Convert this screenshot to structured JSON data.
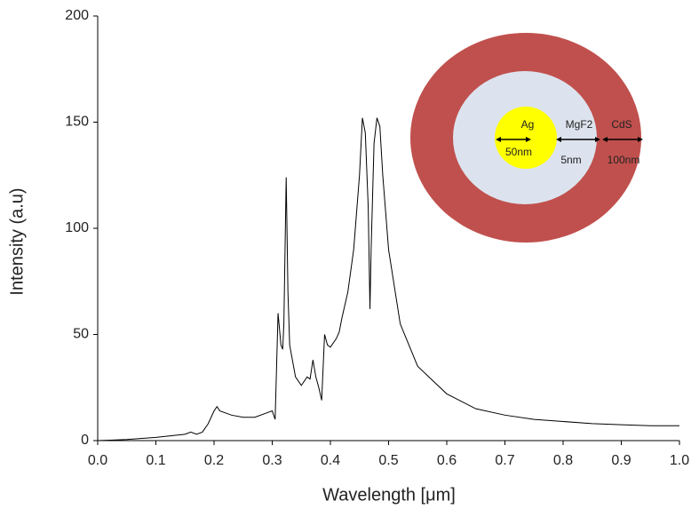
{
  "chart_data": {
    "type": "line",
    "xlabel": "Wavelength [μm]",
    "ylabel": "Intensity (a.u)",
    "x": [
      0,
      0.05,
      0.1,
      0.15,
      0.16,
      0.17,
      0.18,
      0.19,
      0.2,
      0.205,
      0.21,
      0.23,
      0.25,
      0.27,
      0.29,
      0.3,
      0.305,
      0.31,
      0.315,
      0.318,
      0.32,
      0.324,
      0.327,
      0.33,
      0.34,
      0.35,
      0.36,
      0.365,
      0.37,
      0.375,
      0.38,
      0.385,
      0.39,
      0.395,
      0.4,
      0.41,
      0.415,
      0.42,
      0.43,
      0.44,
      0.45,
      0.455,
      0.46,
      0.465,
      0.468,
      0.47,
      0.475,
      0.48,
      0.485,
      0.49,
      0.5,
      0.52,
      0.55,
      0.6,
      0.65,
      0.7,
      0.75,
      0.8,
      0.85,
      0.9,
      0.95,
      1.0
    ],
    "series": [
      {
        "color": "#000000",
        "values": [
          0,
          0.5,
          1.5,
          3,
          4,
          3,
          4,
          8,
          14,
          16,
          14,
          12,
          11,
          11,
          13,
          14,
          10,
          60,
          45,
          43,
          55,
          124,
          70,
          45,
          30,
          26,
          30,
          29,
          38,
          30,
          25,
          19,
          50,
          45,
          44,
          48,
          51,
          58,
          70,
          90,
          125,
          152,
          145,
          110,
          62,
          90,
          140,
          152,
          148,
          125,
          90,
          55,
          35,
          22,
          15,
          12,
          10,
          9,
          8,
          7.5,
          7,
          7
        ]
      }
    ],
    "xlim": [
      0,
      1
    ],
    "ylim": [
      0,
      200
    ],
    "xticks": [
      {
        "value": 0,
        "label": "0.0"
      },
      0.1,
      0.2,
      0.3,
      0.4,
      0.5,
      0.6,
      0.7,
      0.8,
      0.9,
      {
        "value": 1,
        "label": "1.0"
      }
    ],
    "yticks": [
      0,
      50,
      100,
      150,
      200
    ],
    "annotations": [
      "Ag",
      "50nm",
      "MgF2",
      "5nm",
      "CdS",
      "100nm"
    ]
  }
}
